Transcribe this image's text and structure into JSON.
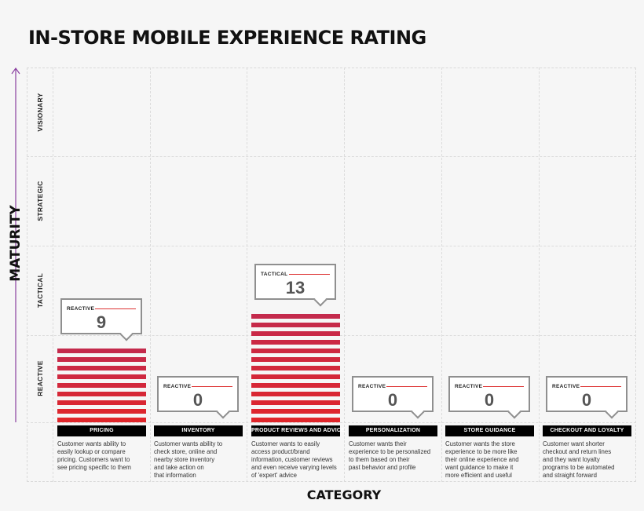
{
  "chart_data": {
    "type": "bar",
    "title": "IN-STORE MOBILE EXPERIENCE RATING",
    "ylabel": "MATURITY",
    "xlabel": "CATEGORY",
    "y_levels": [
      "REACTIVE",
      "TACTICAL",
      "STRATEGIC",
      "VISIONARY"
    ],
    "categories": [
      "PRICING",
      "INVENTORY",
      "PRODUCT REVIEWS AND ADVICE",
      "PERSONALIZATION",
      "STORE GUIDANCE",
      "CHECKOUT AND LOYALTY"
    ],
    "values": [
      9,
      0,
      13,
      0,
      0,
      0
    ],
    "value_levels": [
      "REACTIVE",
      "REACTIVE",
      "TACTICAL",
      "REACTIVE",
      "REACTIVE",
      "REACTIVE"
    ],
    "descriptions": [
      [
        "Customer wants ability to",
        "easily lookup or compare",
        "pricing. Customers want to",
        "see pricing specific to them"
      ],
      [
        "Customer wants ability to",
        "check store, online and",
        "nearby store inventory",
        "and take action on",
        "that information"
      ],
      [
        "Customer wants to easily",
        "access product/brand",
        "information, customer reviews",
        "and even receive varying levels",
        "of 'expert' advice"
      ],
      [
        "Customer wants their",
        "experience to be personalized",
        "to them based on their",
        "past behavior and profile"
      ],
      [
        "Customer wants the store",
        "experience to be more like",
        "their online experience and",
        "want guidance to make it",
        "more efficient and useful"
      ],
      [
        "Customer want shorter",
        "checkout and return lines",
        "and they want loyalty",
        "programs to be automated",
        "and straight forward"
      ]
    ],
    "ylim": [
      0,
      20
    ],
    "grid": true,
    "colors": {
      "bar_top": "#c42a4c",
      "bar_bottom": "#e0262b",
      "callout_border": "#8f8f8f",
      "accent_line": "#dd3333"
    }
  }
}
